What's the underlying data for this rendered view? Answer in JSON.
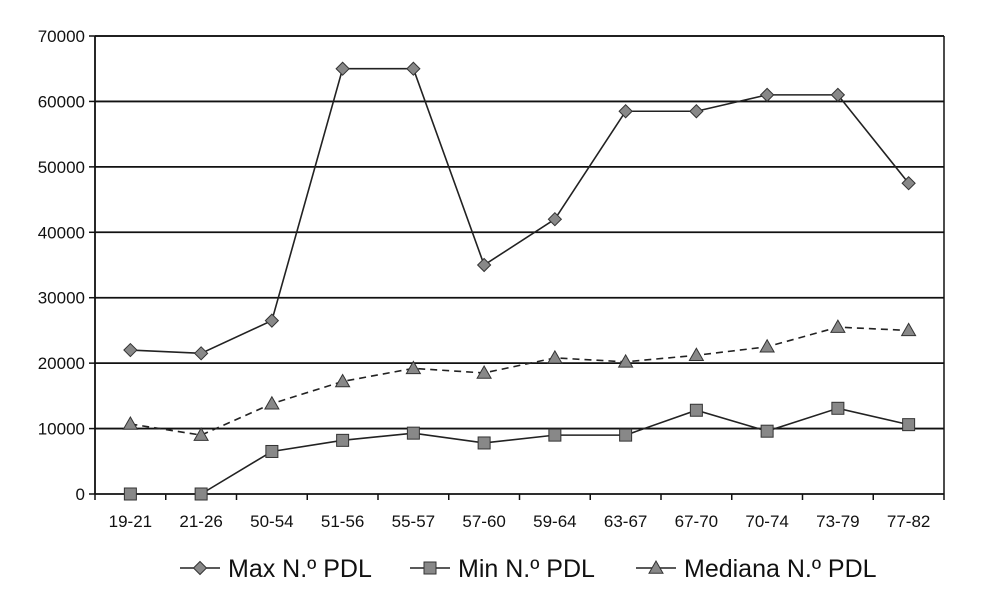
{
  "chart_data": {
    "type": "line",
    "title": "",
    "xlabel": "",
    "ylabel": "",
    "categories": [
      "19-21",
      "21-26",
      "50-54",
      "51-56",
      "55-57",
      "57-60",
      "59-64",
      "63-67",
      "67-70",
      "70-74",
      "73-79",
      "77-82"
    ],
    "ylim": [
      0,
      70000
    ],
    "yticks": [
      0,
      10000,
      20000,
      30000,
      40000,
      50000,
      60000,
      70000
    ],
    "ytick_labels": [
      "0",
      "10000",
      "20000",
      "30000",
      "40000",
      "50000",
      "60000",
      "70000"
    ],
    "grid": true,
    "legend_position": "bottom",
    "series": [
      {
        "name": "Max N.º PDL",
        "marker": "diamond",
        "line_style": "solid",
        "color": "#222222",
        "marker_color": "#888888",
        "values": [
          22000,
          21500,
          26500,
          65000,
          65000,
          35000,
          42000,
          58500,
          58500,
          61000,
          61000,
          47500
        ]
      },
      {
        "name": "Min N.º PDL",
        "marker": "square",
        "line_style": "solid",
        "color": "#222222",
        "marker_color": "#888888",
        "values": [
          0,
          0,
          6500,
          8200,
          9300,
          7800,
          9000,
          9000,
          12800,
          9600,
          13100,
          10600
        ]
      },
      {
        "name": "Mediana N.º PDL",
        "marker": "triangle",
        "line_style": "dashed",
        "color": "#222222",
        "marker_color": "#888888",
        "values": [
          10700,
          9000,
          13800,
          17200,
          19200,
          18500,
          20800,
          20200,
          21200,
          22500,
          25500,
          25000
        ]
      }
    ]
  }
}
